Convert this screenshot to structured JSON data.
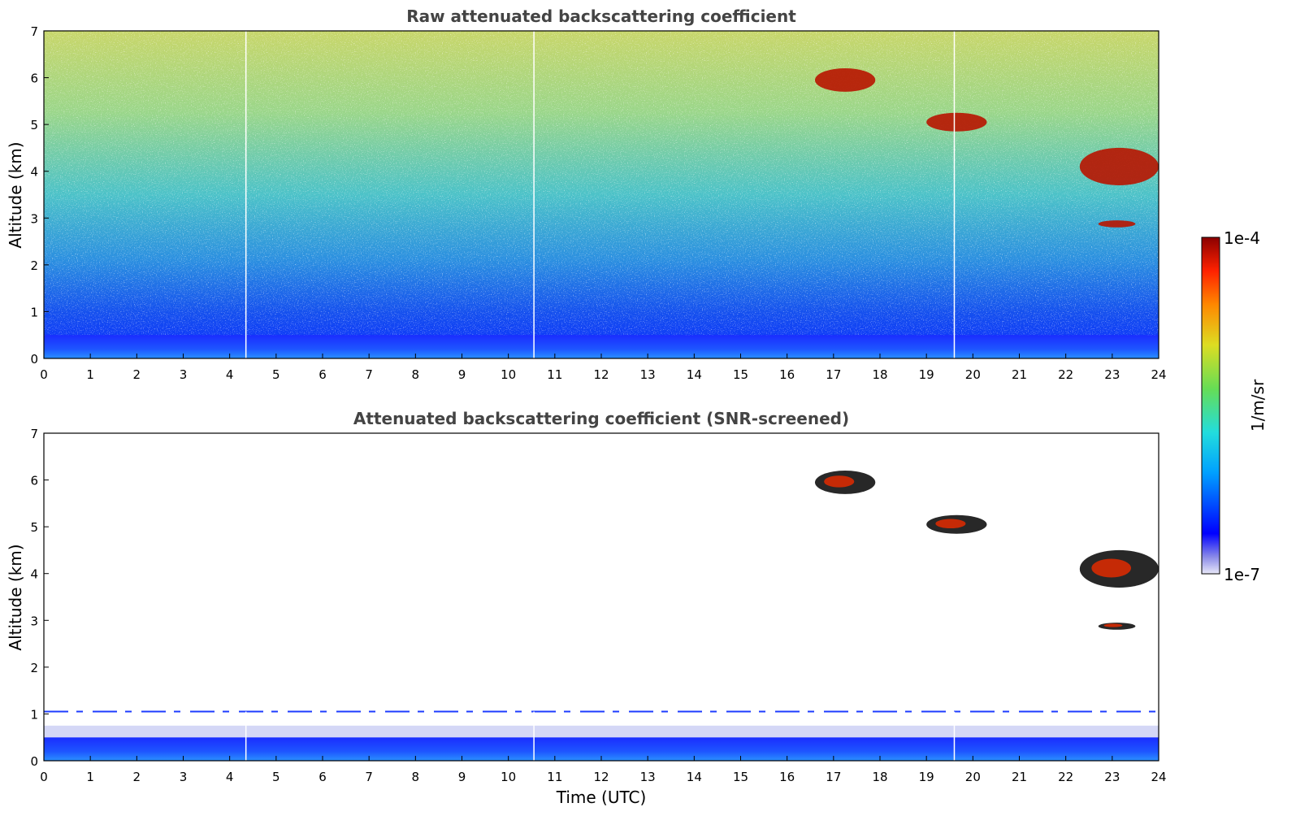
{
  "chart_data": [
    {
      "type": "heatmap",
      "title": "Raw attenuated backscattering coefficient",
      "xlabel": "",
      "ylabel": "Altitude (km)",
      "xlim": [
        0,
        24
      ],
      "ylim": [
        0,
        7
      ],
      "x_ticks": [
        0,
        1,
        2,
        3,
        4,
        5,
        6,
        7,
        8,
        9,
        10,
        11,
        12,
        13,
        14,
        15,
        16,
        17,
        18,
        19,
        20,
        21,
        22,
        23,
        24
      ],
      "y_ticks": [
        0,
        1,
        2,
        3,
        4,
        5,
        6,
        7
      ],
      "grid": false,
      "data_gaps_utc": [
        4.35,
        10.55,
        19.6
      ],
      "features": [
        {
          "name": "boundary-layer",
          "x": [
            0,
            24
          ],
          "top_km": 0.5
        },
        {
          "name": "cloud",
          "x": [
            16.6,
            17.9
          ],
          "y": [
            5.7,
            6.2
          ]
        },
        {
          "name": "cloud",
          "x": [
            19.0,
            20.3
          ],
          "y": [
            4.85,
            5.25
          ]
        },
        {
          "name": "cloud",
          "x": [
            22.3,
            24.0
          ],
          "y": [
            3.7,
            4.5
          ]
        },
        {
          "name": "cloud",
          "x": [
            22.7,
            23.5
          ],
          "y": [
            2.8,
            2.95
          ]
        }
      ]
    },
    {
      "type": "heatmap",
      "title": "Attenuated backscattering coefficient (SNR-screened)",
      "xlabel": "Time (UTC)",
      "ylabel": "Altitude (km)",
      "xlim": [
        0,
        24
      ],
      "ylim": [
        0,
        7
      ],
      "x_ticks": [
        0,
        1,
        2,
        3,
        4,
        5,
        6,
        7,
        8,
        9,
        10,
        11,
        12,
        13,
        14,
        15,
        16,
        17,
        18,
        19,
        20,
        21,
        22,
        23,
        24
      ],
      "y_ticks": [
        0,
        1,
        2,
        3,
        4,
        5,
        6,
        7
      ],
      "grid": false,
      "data_gaps_utc": [
        4.35,
        10.55,
        19.6
      ],
      "features": [
        {
          "name": "boundary-layer",
          "x": [
            0,
            24
          ],
          "top_km": 0.5
        },
        {
          "name": "residual-layer",
          "x": [
            0,
            24
          ],
          "y_km": 1.05
        },
        {
          "name": "cloud",
          "x": [
            16.6,
            17.9
          ],
          "y": [
            5.7,
            6.2
          ]
        },
        {
          "name": "cloud",
          "x": [
            19.0,
            20.3
          ],
          "y": [
            4.85,
            5.25
          ]
        },
        {
          "name": "cloud",
          "x": [
            22.3,
            24.0
          ],
          "y": [
            3.7,
            4.5
          ]
        },
        {
          "name": "cloud",
          "x": [
            22.7,
            23.5
          ],
          "y": [
            2.8,
            2.95
          ]
        }
      ]
    }
  ],
  "colorbar": {
    "label": "1/m/sr",
    "min_label": "1e-7",
    "max_label": "1e-4",
    "colors": [
      "#e8e8f8",
      "#0000ff",
      "#00aaff",
      "#22dddd",
      "#66dd66",
      "#dddd22",
      "#ff8800",
      "#ff2200",
      "#8b0000"
    ]
  }
}
